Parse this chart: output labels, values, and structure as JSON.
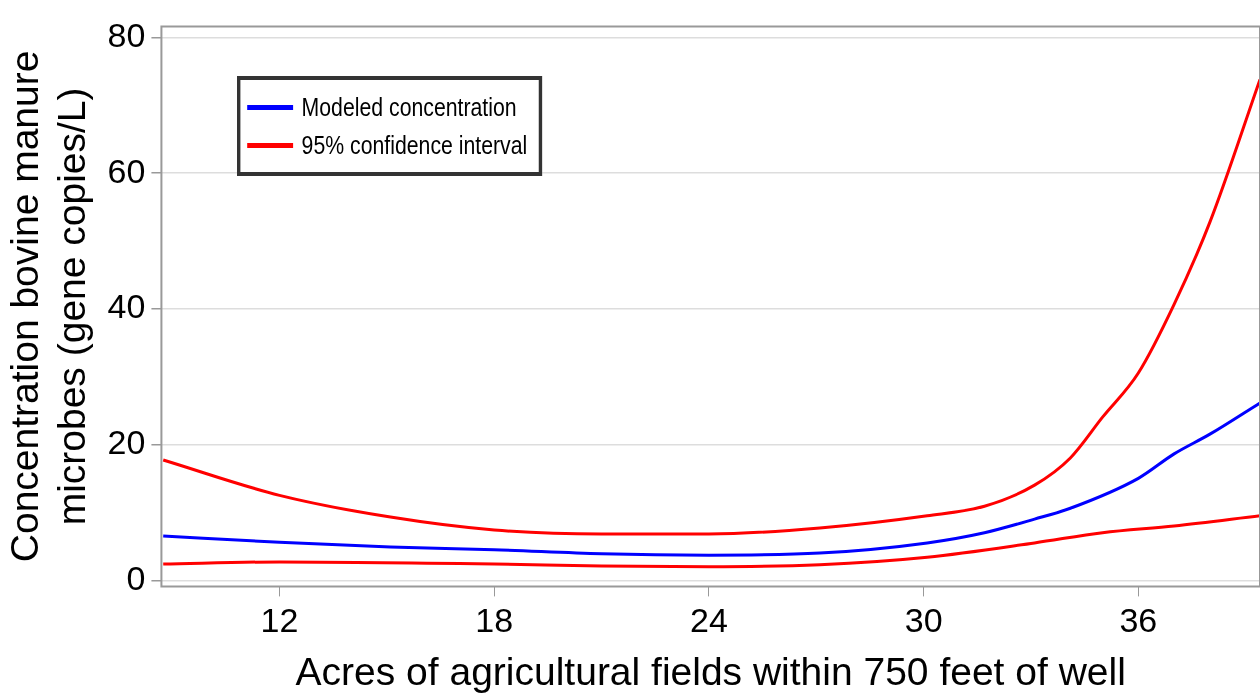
{
  "chart_data": {
    "type": "line",
    "xlabel": "Acres of agricultural fields within 750 feet of well",
    "ylabel": "Concentration bovine manure\nmicrobes (gene copies/L)",
    "xlim": [
      8.7,
      39.4
    ],
    "ylim": [
      -0.8,
      81.6
    ],
    "xticks": [
      12,
      18,
      24,
      30,
      36
    ],
    "yticks": [
      0,
      20,
      40,
      60,
      80
    ],
    "grid": "y",
    "legend": "top left",
    "marker": "none",
    "line_style": "solid",
    "series": [
      {
        "name": "Modeled concentration",
        "color": "#0000ff",
        "x": [
          8.75,
          12,
          15.1,
          18,
          21,
          24,
          27.1,
          30.1,
          31.7,
          33.1,
          34.1,
          36,
          37,
          38,
          39.4
        ],
        "values": [
          6.6,
          5.7,
          5,
          4.6,
          4,
          3.8,
          4.1,
          5.6,
          7.1,
          9.1,
          10.7,
          15.1,
          18.7,
          21.6,
          26.2
        ]
      },
      {
        "name": "95% confidence interval",
        "color": "#ff0000",
        "x": [
          8.75,
          12,
          15.1,
          18,
          21,
          24,
          27.1,
          30.1,
          31.7,
          33.1,
          34.1,
          35,
          36,
          37,
          38,
          39.4
        ],
        "values": [
          17.8,
          12.6,
          9.4,
          7.5,
          6.9,
          6.9,
          7.8,
          9.6,
          11,
          14.1,
          18.1,
          24.1,
          30.6,
          40.7,
          52.8,
          73.8
        ]
      },
      {
        "color": "#ff0000",
        "x": [
          8.75,
          12,
          18,
          21,
          24,
          27.1,
          30.1,
          33.1,
          35,
          37,
          39.4
        ],
        "values": [
          2.5,
          2.8,
          2.5,
          2.2,
          2.1,
          2.4,
          3.5,
          5.6,
          7.1,
          8.1,
          9.6
        ]
      }
    ]
  }
}
